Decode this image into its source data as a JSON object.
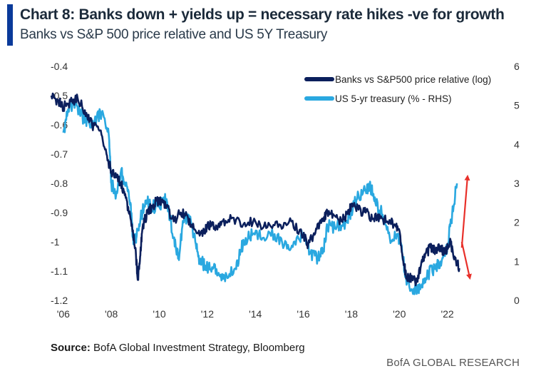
{
  "header": {
    "title": "Chart 8: Banks down + yields up = necessary rate hikes -ve for growth",
    "subtitle": "Banks vs S&P 500 price relative and US 5Y Treasury"
  },
  "source": {
    "label": "Source:",
    "text": "BofA Global Investment Strategy, Bloomberg"
  },
  "footer": {
    "brand": "BofA GLOBAL RESEARCH"
  },
  "colors": {
    "banks": "#0b1f5c",
    "treasury": "#2aa8e0",
    "arrow": "#e8302a",
    "accent": "#0a3a9a"
  },
  "chart_data": {
    "type": "line",
    "title": "Banks vs S&P 500 price relative and US 5Y Treasury",
    "x_tick_labels": [
      "'06",
      "'08",
      "'10",
      "'12",
      "'14",
      "'16",
      "'18",
      "'20",
      "'22"
    ],
    "x_ticks": [
      2006,
      2008,
      2010,
      2012,
      2014,
      2016,
      2018,
      2020,
      2022
    ],
    "xlim": [
      2005.5,
      2023.2
    ],
    "y_left": {
      "ticks": [
        -0.4,
        -0.5,
        -0.6,
        -0.7,
        -0.8,
        -0.9,
        -1,
        -1.1,
        -1.2
      ],
      "tick_labels": [
        "-0.4",
        "-0.5",
        "-0.6",
        "-0.7",
        "-0.8",
        "-0.9",
        "-1",
        "-1.1",
        "-1.2"
      ],
      "ylim": [
        -1.2,
        -0.4
      ]
    },
    "y_right": {
      "ticks": [
        0,
        1,
        2,
        3,
        4,
        5,
        6
      ],
      "tick_labels": [
        "0",
        "1",
        "2",
        "3",
        "4",
        "5",
        "6"
      ],
      "ylim": [
        0,
        6
      ]
    },
    "series": [
      {
        "name": "Banks vs S&P500 price relative (log)",
        "axis": "left",
        "x": [
          2005.5,
          2005.8,
          2006.0,
          2006.3,
          2006.6,
          2006.9,
          2007.2,
          2007.5,
          2007.8,
          2008.0,
          2008.2,
          2008.4,
          2008.6,
          2008.8,
          2009.0,
          2009.1,
          2009.2,
          2009.3,
          2009.5,
          2009.7,
          2009.9,
          2010.1,
          2010.3,
          2010.6,
          2010.9,
          2011.2,
          2011.5,
          2011.8,
          2012.0,
          2012.3,
          2012.6,
          2013.0,
          2013.5,
          2014.0,
          2014.5,
          2015.0,
          2015.5,
          2016.0,
          2016.2,
          2016.5,
          2016.8,
          2017.0,
          2017.3,
          2017.6,
          2017.9,
          2018.0,
          2018.3,
          2018.6,
          2018.9,
          2019.2,
          2019.5,
          2019.8,
          2020.0,
          2020.2,
          2020.3,
          2020.5,
          2020.7,
          2020.9,
          2021.1,
          2021.3,
          2021.5,
          2021.7,
          2021.9,
          2022.1,
          2022.3,
          2022.5
        ],
        "y": [
          -0.5,
          -0.52,
          -0.54,
          -0.52,
          -0.51,
          -0.55,
          -0.6,
          -0.62,
          -0.7,
          -0.76,
          -0.78,
          -0.8,
          -0.85,
          -0.92,
          -1.02,
          -1.13,
          -1.05,
          -0.95,
          -0.9,
          -0.88,
          -0.86,
          -0.86,
          -0.88,
          -0.93,
          -0.9,
          -0.92,
          -0.96,
          -0.98,
          -0.94,
          -0.95,
          -0.93,
          -0.92,
          -0.94,
          -0.93,
          -0.95,
          -0.94,
          -0.93,
          -0.98,
          -1.01,
          -0.97,
          -0.92,
          -0.9,
          -0.91,
          -0.93,
          -0.9,
          -0.87,
          -0.89,
          -0.9,
          -0.92,
          -0.92,
          -0.93,
          -0.94,
          -0.96,
          -1.08,
          -1.12,
          -1.12,
          -1.14,
          -1.08,
          -1.04,
          -1.02,
          -1.03,
          -1.02,
          -1.04,
          -1.0,
          -1.05,
          -1.09
        ]
      },
      {
        "name": "US 5-yr treasury (% - RHS)",
        "axis": "right",
        "x": [
          2006.0,
          2006.2,
          2006.5,
          2006.8,
          2007.0,
          2007.3,
          2007.6,
          2007.9,
          2008.0,
          2008.2,
          2008.4,
          2008.6,
          2008.8,
          2008.9,
          2009.0,
          2009.1,
          2009.3,
          2009.5,
          2009.7,
          2010.0,
          2010.3,
          2010.6,
          2010.8,
          2011.0,
          2011.2,
          2011.5,
          2011.7,
          2011.9,
          2012.2,
          2012.5,
          2012.8,
          2013.2,
          2013.4,
          2013.6,
          2013.9,
          2014.3,
          2014.8,
          2015.2,
          2015.6,
          2016.0,
          2016.3,
          2016.6,
          2016.8,
          2017.0,
          2017.4,
          2017.8,
          2018.0,
          2018.3,
          2018.6,
          2018.8,
          2019.0,
          2019.3,
          2019.6,
          2019.9,
          2020.1,
          2020.3,
          2020.6,
          2020.9,
          2021.2,
          2021.5,
          2021.8,
          2022.0,
          2022.2,
          2022.4
        ],
        "y": [
          4.3,
          4.9,
          5.1,
          4.7,
          4.6,
          4.6,
          4.8,
          4.2,
          3.0,
          2.7,
          3.3,
          3.0,
          2.5,
          1.6,
          1.5,
          1.8,
          2.3,
          2.5,
          2.4,
          2.4,
          2.6,
          1.6,
          1.1,
          2.0,
          2.2,
          1.5,
          1.0,
          0.9,
          0.85,
          0.65,
          0.65,
          0.8,
          1.3,
          1.6,
          1.7,
          1.6,
          1.7,
          1.4,
          1.5,
          1.7,
          1.2,
          1.1,
          1.2,
          1.9,
          1.9,
          2.0,
          2.3,
          2.7,
          2.8,
          2.9,
          2.5,
          2.2,
          1.6,
          1.7,
          1.4,
          0.4,
          0.3,
          0.35,
          0.7,
          0.8,
          1.1,
          1.4,
          2.2,
          3.0
        ]
      }
    ],
    "annotations": [
      {
        "type": "arrow",
        "direction": "up",
        "color": "#e8302a",
        "x": 2022.6,
        "from": -1.02,
        "to": -0.78
      },
      {
        "type": "arrow",
        "direction": "down",
        "color": "#e8302a",
        "x": 2022.6,
        "from": -1.0,
        "to": -1.12
      }
    ]
  }
}
